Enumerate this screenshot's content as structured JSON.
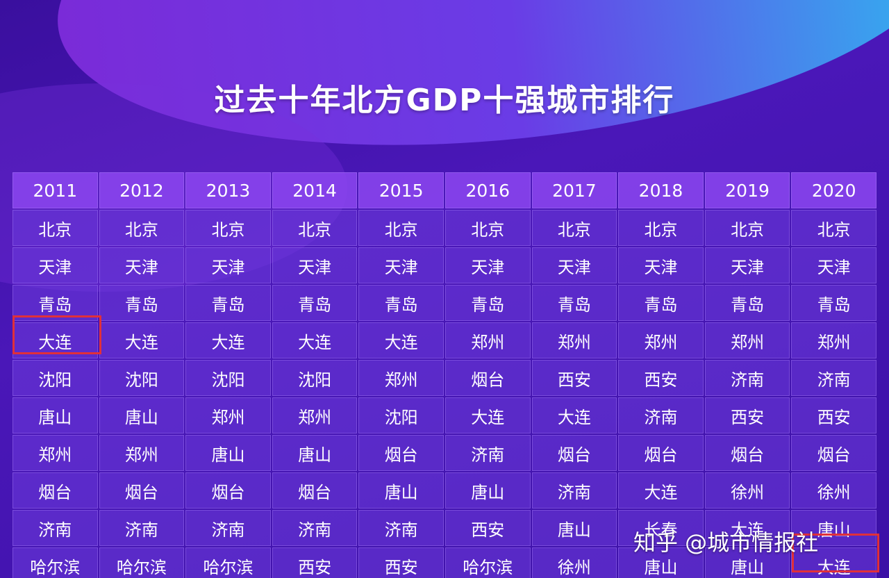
{
  "title": "过去十年北方GDP十强城市排行",
  "table": {
    "header": [
      "2011",
      "2012",
      "2013",
      "2014",
      "2015",
      "2016",
      "2017",
      "2018",
      "2019",
      "2020"
    ],
    "rows": [
      [
        "北京",
        "北京",
        "北京",
        "北京",
        "北京",
        "北京",
        "北京",
        "北京",
        "北京",
        "北京"
      ],
      [
        "天津",
        "天津",
        "天津",
        "天津",
        "天津",
        "天津",
        "天津",
        "天津",
        "天津",
        "天津"
      ],
      [
        "青岛",
        "青岛",
        "青岛",
        "青岛",
        "青岛",
        "青岛",
        "青岛",
        "青岛",
        "青岛",
        "青岛"
      ],
      [
        "大连",
        "大连",
        "大连",
        "大连",
        "大连",
        "郑州",
        "郑州",
        "郑州",
        "郑州",
        "郑州"
      ],
      [
        "沈阳",
        "沈阳",
        "沈阳",
        "沈阳",
        "郑州",
        "烟台",
        "西安",
        "西安",
        "济南",
        "济南"
      ],
      [
        "唐山",
        "唐山",
        "郑州",
        "郑州",
        "沈阳",
        "大连",
        "大连",
        "济南",
        "西安",
        "西安"
      ],
      [
        "郑州",
        "郑州",
        "唐山",
        "唐山",
        "烟台",
        "济南",
        "烟台",
        "烟台",
        "烟台",
        "烟台"
      ],
      [
        "烟台",
        "烟台",
        "烟台",
        "烟台",
        "唐山",
        "唐山",
        "济南",
        "大连",
        "徐州",
        "徐州"
      ],
      [
        "济南",
        "济南",
        "济南",
        "济南",
        "济南",
        "西安",
        "唐山",
        "长春",
        "大连",
        "唐山"
      ],
      [
        "哈尔滨",
        "哈尔滨",
        "哈尔滨",
        "西安",
        "西安",
        "哈尔滨",
        "徐州",
        "唐山",
        "唐山",
        "大连"
      ]
    ]
  },
  "watermark": "知乎 @城市情报社"
}
